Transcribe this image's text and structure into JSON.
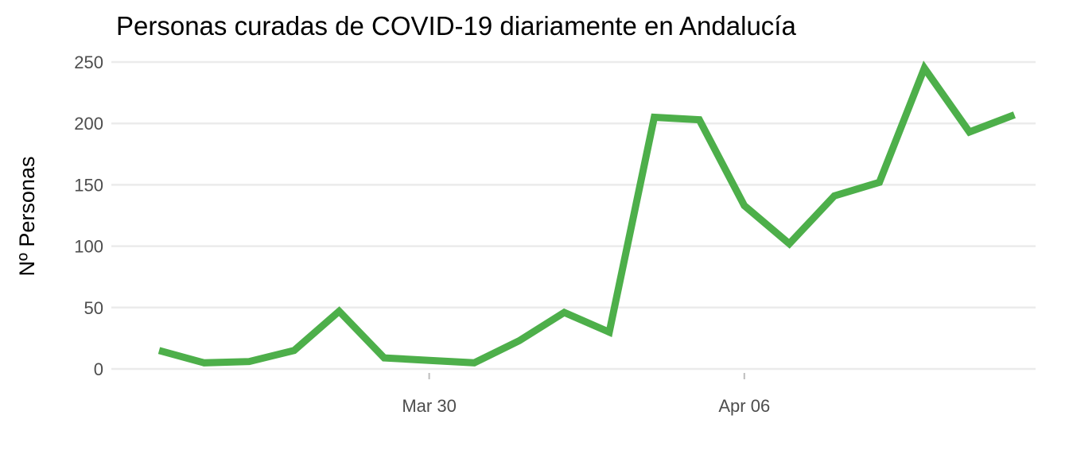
{
  "chart_data": {
    "type": "line",
    "title": "Personas curadas de COVID-19 diariamente en Andalucía",
    "xlabel": "",
    "ylabel": "Nº Personas",
    "ylim": [
      0,
      250
    ],
    "y_ticks": [
      "0",
      "50",
      "100",
      "150",
      "200",
      "250"
    ],
    "x_ticks": [
      "Mar 30",
      "Apr 06"
    ],
    "grid": true,
    "legend": "none",
    "series": [
      {
        "color": "#4daf4a",
        "x": [
          "2020-03-24",
          "2020-03-25",
          "2020-03-26",
          "2020-03-27",
          "2020-03-28",
          "2020-03-29",
          "2020-03-30",
          "2020-03-31",
          "2020-04-01",
          "2020-04-02",
          "2020-04-03",
          "2020-04-04",
          "2020-04-05",
          "2020-04-06",
          "2020-04-07",
          "2020-04-08",
          "2020-04-09",
          "2020-04-10",
          "2020-04-11",
          "2020-04-12"
        ],
        "values": [
          15,
          5,
          6,
          15,
          47,
          9,
          7,
          5,
          23,
          46,
          30,
          205,
          203,
          133,
          102,
          141,
          152,
          245,
          193,
          207
        ]
      }
    ]
  }
}
